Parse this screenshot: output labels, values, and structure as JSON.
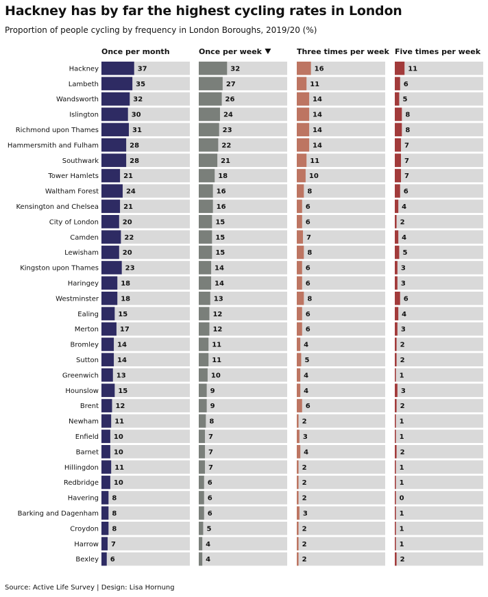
{
  "title": "Hackney has by far the highest cycling rates in London",
  "subtitle": "Proportion of people cycling by frequency in London Boroughs, 2019/20 (%)",
  "footer": "Source: Active Life Survey  |  Design: Lisa Hornung",
  "sort_indicator_icon": "triangle-down-icon",
  "chart_data": {
    "type": "bar",
    "orientation": "horizontal",
    "xlim": [
      0,
      100
    ],
    "grid": false,
    "categories": [
      "Hackney",
      "Lambeth",
      "Wandsworth",
      "Islington",
      "Richmond upon Thames",
      "Hammersmith and Fulham",
      "Southwark",
      "Tower Hamlets",
      "Waltham Forest",
      "Kensington and Chelsea",
      "City of London",
      "Camden",
      "Lewisham",
      "Kingston upon Thames",
      "Haringey",
      "Westminster",
      "Ealing",
      "Merton",
      "Bromley",
      "Sutton",
      "Greenwich",
      "Hounslow",
      "Brent",
      "Newham",
      "Enfield",
      "Barnet",
      "Hillingdon",
      "Redbridge",
      "Havering",
      "Barking and Dagenham",
      "Croydon",
      "Harrow",
      "Bexley"
    ],
    "series": [
      {
        "name": "Once per month",
        "color": "#2e2b63",
        "values": [
          37,
          35,
          32,
          30,
          31,
          28,
          28,
          21,
          24,
          21,
          20,
          22,
          20,
          23,
          18,
          18,
          15,
          17,
          14,
          14,
          13,
          15,
          12,
          11,
          10,
          10,
          11,
          10,
          8,
          8,
          8,
          7,
          6
        ]
      },
      {
        "name": "Once per week",
        "color": "#7a7f7a",
        "sorted_by": true,
        "values": [
          32,
          27,
          26,
          24,
          23,
          22,
          21,
          18,
          16,
          16,
          15,
          15,
          15,
          14,
          14,
          13,
          12,
          12,
          11,
          11,
          10,
          9,
          9,
          8,
          7,
          7,
          7,
          6,
          6,
          6,
          5,
          4,
          4
        ]
      },
      {
        "name": "Three times per week",
        "color": "#bd7562",
        "values": [
          16,
          11,
          14,
          14,
          14,
          14,
          11,
          10,
          8,
          6,
          6,
          7,
          8,
          6,
          6,
          8,
          6,
          6,
          4,
          5,
          4,
          4,
          6,
          2,
          3,
          4,
          2,
          2,
          2,
          3,
          2,
          2,
          2
        ]
      },
      {
        "name": "Five times per week",
        "color": "#a23b3b",
        "values": [
          11,
          6,
          5,
          8,
          8,
          7,
          7,
          7,
          6,
          4,
          2,
          4,
          5,
          3,
          3,
          6,
          4,
          3,
          2,
          2,
          1,
          3,
          2,
          1,
          1,
          2,
          1,
          1,
          0,
          1,
          1,
          1,
          2
        ]
      }
    ],
    "background_bar_color": "#d9d9d9"
  }
}
